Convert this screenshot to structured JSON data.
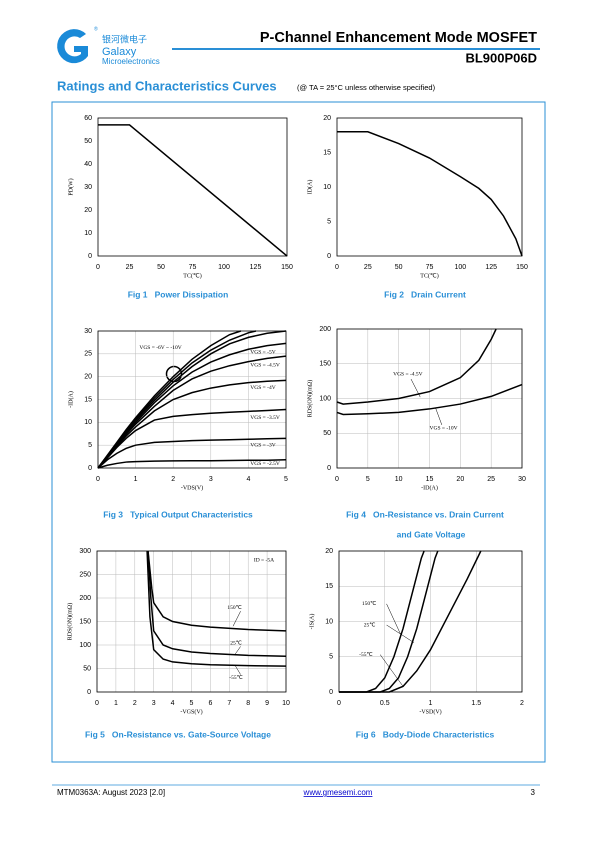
{
  "header": {
    "brand_cn": "银河微电子",
    "brand": "Galaxy",
    "brand_sub": "Microelectronics",
    "title": "P-Channel Enhancement Mode MOSFET",
    "part": "BL900P06D"
  },
  "section": {
    "title": "Ratings and Characteristics Curves",
    "note": "(@ TA = 25°C unless otherwise specified)"
  },
  "chart_data": [
    {
      "type": "line",
      "caption": "Fig 1   Power Dissipation",
      "xlabel": "TC(℃)",
      "ylabel": "PD(W)",
      "xlim": [
        0,
        150
      ],
      "xticks": [
        0,
        25,
        50,
        75,
        100,
        125,
        150
      ],
      "ylim": [
        0,
        60
      ],
      "yticks": [
        0,
        10,
        20,
        30,
        40,
        50,
        60
      ],
      "grid": false,
      "color": "#000000",
      "series": [
        {
          "x": [
            0,
            25,
            150
          ],
          "values": [
            57,
            57,
            0
          ]
        }
      ]
    },
    {
      "type": "line",
      "caption": "Fig 2   Drain Current",
      "xlabel": "TC(℃)",
      "ylabel": "ID(A)",
      "xlim": [
        0,
        150
      ],
      "xticks": [
        0,
        25,
        50,
        75,
        100,
        125,
        150
      ],
      "ylim": [
        0,
        20
      ],
      "yticks": [
        0,
        5,
        10,
        15,
        20
      ],
      "grid": false,
      "color": "#000000",
      "series": [
        {
          "x": [
            0,
            25,
            50,
            75,
            100,
            115,
            125,
            135,
            145,
            150
          ],
          "values": [
            18,
            18,
            16.3,
            14.2,
            11.5,
            9.8,
            8.2,
            5.8,
            2.5,
            0
          ]
        }
      ]
    },
    {
      "type": "line",
      "caption": "Fig 3   Typical Output Characteristics",
      "xlabel": "-VDS(V)",
      "ylabel": "-ID(A)",
      "xlim": [
        0,
        5
      ],
      "xticks": [
        0,
        1,
        2,
        3,
        4,
        5
      ],
      "ylim": [
        0,
        30
      ],
      "yticks": [
        0,
        5,
        10,
        15,
        20,
        25,
        30
      ],
      "grid": true,
      "color": "#000000",
      "annotations": [
        "VGS = -6V ~ -10V"
      ],
      "series": [
        {
          "name": "VGS = -2.5V",
          "x": [
            0,
            0.25,
            0.5,
            0.75,
            1,
            1.5,
            2,
            2.5,
            3,
            3.5,
            4,
            4.5,
            5
          ],
          "values": [
            0,
            0.6,
            1,
            1.3,
            1.4,
            1.5,
            1.55,
            1.6,
            1.6,
            1.65,
            1.7,
            1.7,
            1.8
          ]
        },
        {
          "name": "VGS = -3V",
          "x": [
            0,
            0.25,
            0.5,
            0.75,
            1,
            1.5,
            2,
            2.5,
            3,
            3.5,
            4,
            4.5,
            5
          ],
          "values": [
            0,
            1.8,
            3.2,
            4.3,
            5,
            5.6,
            5.8,
            6,
            6.1,
            6.2,
            6.3,
            6.4,
            6.5
          ]
        },
        {
          "name": "VGS = -3.5V",
          "x": [
            0,
            0.25,
            0.5,
            0.75,
            1,
            1.5,
            2,
            2.5,
            3,
            3.5,
            4,
            4.5,
            5
          ],
          "values": [
            0,
            2.2,
            4.5,
            6.5,
            8.2,
            10.5,
            11.3,
            11.7,
            12,
            12.2,
            12.4,
            12.6,
            12.8
          ]
        },
        {
          "name": "VGS = -4V",
          "x": [
            0,
            0.25,
            0.5,
            0.75,
            1,
            1.5,
            2,
            2.5,
            3,
            3.5,
            4,
            4.5,
            5
          ],
          "values": [
            0,
            2.4,
            4.8,
            7,
            9,
            12.5,
            15,
            16.5,
            17.5,
            18.2,
            18.7,
            19,
            19.2
          ]
        },
        {
          "name": "VGS = -4.5V",
          "x": [
            0,
            0.25,
            0.5,
            0.75,
            1,
            1.5,
            2,
            2.5,
            3,
            3.5,
            4,
            4.5,
            5
          ],
          "values": [
            0,
            2.5,
            5,
            7.4,
            9.6,
            13.5,
            17,
            19.5,
            21.2,
            22.4,
            23.3,
            24,
            24.5
          ]
        },
        {
          "name": "VGS = -5V",
          "x": [
            0,
            0.25,
            0.5,
            0.75,
            1,
            1.5,
            2,
            2.5,
            3,
            3.5,
            4,
            4.5,
            5
          ],
          "values": [
            0,
            2.6,
            5.2,
            7.7,
            10,
            14.3,
            18,
            21,
            23.2,
            24.8,
            26,
            26.8,
            27.3
          ]
        },
        {
          "x": [
            0,
            0.25,
            0.5,
            0.75,
            1,
            1.5,
            2,
            2.5,
            3,
            3.5,
            4,
            4.5,
            5
          ],
          "values": [
            0,
            2.6,
            5.3,
            7.9,
            10.4,
            14.8,
            18.8,
            22.2,
            25,
            27.2,
            28.6,
            29.5,
            30
          ]
        },
        {
          "x": [
            0,
            0.25,
            0.5,
            0.75,
            1,
            1.5,
            2,
            2.5,
            3,
            3.5,
            4,
            4.2
          ],
          "values": [
            0,
            2.7,
            5.4,
            8.1,
            10.7,
            15.3,
            19.4,
            23,
            25.8,
            28,
            29.6,
            30
          ]
        },
        {
          "x": [
            0,
            0.25,
            0.5,
            0.75,
            1,
            1.5,
            2,
            2.5,
            3,
            3.5,
            3.8
          ],
          "values": [
            0,
            2.8,
            5.6,
            8.4,
            11,
            15.8,
            20,
            23.8,
            26.8,
            29.2,
            30
          ]
        }
      ]
    },
    {
      "type": "line",
      "caption": [
        "Fig 4   On-Resistance vs. Drain Current",
        "and Gate Voltage"
      ],
      "xlabel": "-ID(A)",
      "ylabel": "RDS(ON)(mΩ)",
      "xlim": [
        0,
        30
      ],
      "xticks": [
        0,
        5,
        10,
        15,
        20,
        25,
        30
      ],
      "ylim": [
        0,
        200
      ],
      "yticks": [
        0,
        50,
        100,
        150,
        200
      ],
      "grid": true,
      "color": "#000000",
      "series": [
        {
          "name": "VGS = -4.5V",
          "x": [
            0,
            1,
            5,
            10,
            15,
            20,
            23,
            25,
            25.8
          ],
          "values": [
            95,
            92,
            95,
            100,
            110,
            130,
            155,
            185,
            200
          ]
        },
        {
          "name": "VGS = -10V",
          "x": [
            0,
            1,
            5,
            10,
            15,
            20,
            25,
            30
          ],
          "values": [
            80,
            77,
            78,
            80,
            85,
            92,
            103,
            120
          ]
        }
      ]
    },
    {
      "type": "line",
      "caption": "Fig 5   On-Resistance vs. Gate-Source Voltage",
      "xlabel": "-VGS(V)",
      "ylabel": "RDS(ON)(mΩ)",
      "xlim": [
        0,
        10
      ],
      "xticks": [
        0,
        1,
        2,
        3,
        4,
        5,
        6,
        7,
        8,
        9,
        10
      ],
      "ylim": [
        0,
        300
      ],
      "yticks": [
        0,
        50,
        100,
        150,
        200,
        250,
        300
      ],
      "grid": true,
      "color": "#000000",
      "annotations": [
        "ID = -5A"
      ],
      "series": [
        {
          "name": "150℃",
          "x": [
            2.7,
            2.9,
            3,
            3.5,
            4,
            5,
            6,
            8,
            10
          ],
          "values": [
            300,
            220,
            190,
            160,
            150,
            142,
            138,
            133,
            130
          ]
        },
        {
          "name": "25℃",
          "x": [
            2.7,
            2.85,
            3,
            3.5,
            4,
            5,
            6,
            8,
            10
          ],
          "values": [
            300,
            200,
            130,
            100,
            92,
            85,
            82,
            78,
            76
          ]
        },
        {
          "name": "-55℃",
          "x": [
            2.65,
            2.8,
            3,
            3.5,
            4,
            5,
            6,
            8,
            10
          ],
          "values": [
            300,
            160,
            90,
            70,
            64,
            60,
            58,
            56,
            55
          ]
        }
      ]
    },
    {
      "type": "line",
      "caption": "Fig 6   Body-Diode Characteristics",
      "xlabel": "-VSD(V)",
      "ylabel": "-IS(A)",
      "xlim": [
        0,
        2
      ],
      "xticks": [
        0,
        0.5,
        1,
        1.5,
        2
      ],
      "ylim": [
        0,
        20
      ],
      "yticks": [
        0,
        5,
        10,
        15,
        20
      ],
      "grid": true,
      "color": "#000000",
      "series": [
        {
          "name": "150℃",
          "x": [
            0,
            0.3,
            0.4,
            0.5,
            0.6,
            0.7,
            0.8,
            0.9,
            0.93
          ],
          "values": [
            0,
            0,
            0.5,
            2,
            5,
            9,
            14,
            19,
            20
          ]
        },
        {
          "name": "25℃",
          "x": [
            0,
            0.45,
            0.55,
            0.65,
            0.75,
            0.85,
            0.95,
            1.05,
            1.08
          ],
          "values": [
            0,
            0,
            0.5,
            2,
            5,
            9,
            14,
            19,
            20
          ]
        },
        {
          "name": "-55℃",
          "x": [
            0,
            0.55,
            0.7,
            0.85,
            1,
            1.2,
            1.4,
            1.55
          ],
          "values": [
            0,
            0,
            0.8,
            3,
            6,
            11,
            16,
            20
          ]
        }
      ]
    }
  ],
  "footer": {
    "doc": "MTM0363A: August 2023 [2.0]",
    "url": "www.gmesemi.com",
    "page": "3"
  }
}
